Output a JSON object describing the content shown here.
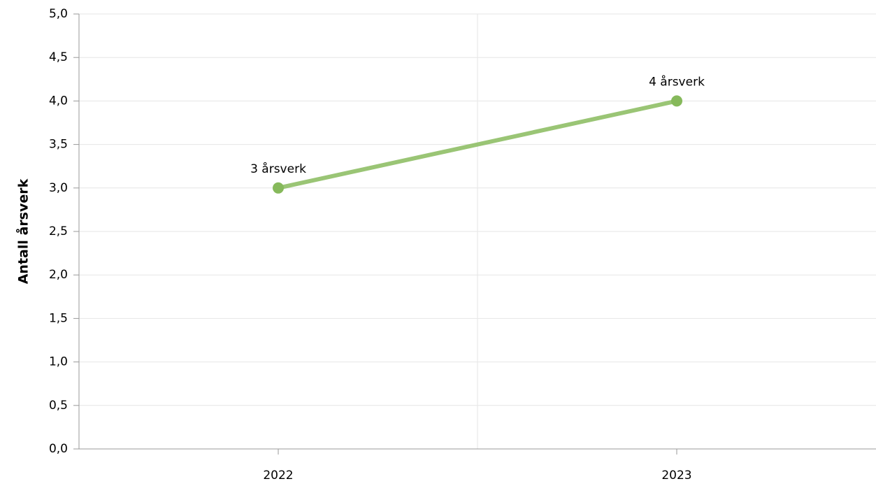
{
  "chart_data": {
    "type": "line",
    "y_label": "Antall årsverk",
    "categories": [
      "2022",
      "2023"
    ],
    "series": [
      {
        "name": "Antall årsverk",
        "color": "#8fbf66",
        "values": [
          3,
          4
        ],
        "value_labels": [
          "3 årsverk",
          "4 årsverk"
        ]
      }
    ],
    "ylim": [
      0,
      5
    ],
    "yticks": [
      {
        "value": 0,
        "label": "0,0"
      },
      {
        "value": 0.5,
        "label": "0,5"
      },
      {
        "value": 1,
        "label": "1,0"
      },
      {
        "value": 1.5,
        "label": "1,5"
      },
      {
        "value": 2,
        "label": "2,0"
      },
      {
        "value": 2.5,
        "label": "2,5"
      },
      {
        "value": 3,
        "label": "3,0"
      },
      {
        "value": 3.5,
        "label": "3,5"
      },
      {
        "value": 4,
        "label": "4,0"
      },
      {
        "value": 4.5,
        "label": "4,5"
      },
      {
        "value": 5,
        "label": "5,0"
      }
    ],
    "grid": true
  }
}
